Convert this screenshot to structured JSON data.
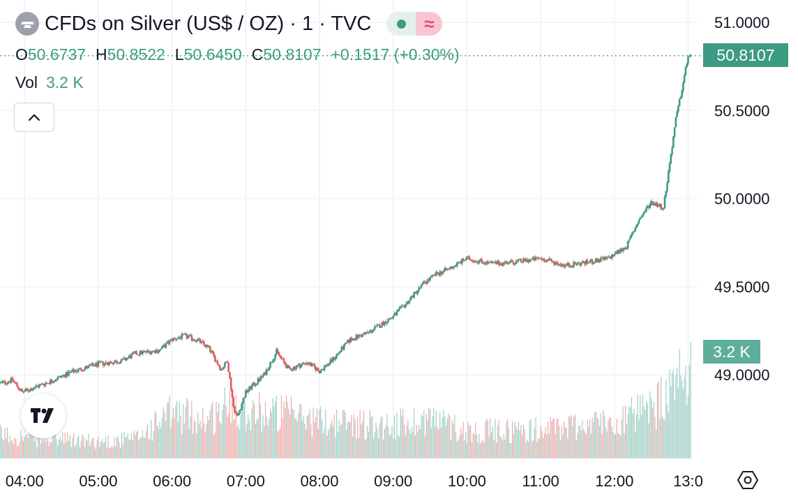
{
  "legend": {
    "title": "CFDs on Silver (US$ / OZ) · 1 · TVC",
    "market_status": "live",
    "delayed_glyph": "≈",
    "open_label": "O",
    "open_value": "50.6737",
    "high_label": "H",
    "high_value": "50.8522",
    "low_label": "L",
    "low_value": "50.6450",
    "close_label": "C",
    "close_value": "50.8107",
    "change": "+0.1517 (+0.30%)",
    "volume_label": "Vol",
    "volume_value": "3.2 K"
  },
  "badges": {
    "last_price": "50.8107",
    "last_volume": "3.2 K"
  },
  "icons": {
    "symbol_logo": "silver-bars-icon",
    "collapse": "chevron-up-icon",
    "watermark": "tradingview-logo-icon",
    "settings": "settings-hexagon-icon"
  },
  "colors": {
    "up": "#3d9b83",
    "down": "#e05b5b",
    "grid": "#f0f3fa",
    "text": "#131722",
    "volume_up": "#9ecfc4",
    "volume_down": "#f0a9a9"
  },
  "chart_data": {
    "type": "line",
    "title": "CFDs on Silver (US$ / OZ) · 1 · TVC",
    "price_axis": {
      "ticks": [
        49.0,
        49.5,
        50.0,
        50.5,
        51.0
      ],
      "labels": [
        "49.0000",
        "49.5000",
        "50.0000",
        "50.5000",
        "51.0000"
      ],
      "range": [
        48.5,
        51.2
      ],
      "grid": true
    },
    "time_axis": {
      "labels": [
        "04:00",
        "05:00",
        "06:00",
        "07:00",
        "08:00",
        "09:00",
        "10:00",
        "11:00",
        "12:00",
        "13:0"
      ],
      "range": [
        "03:40",
        "13:02"
      ],
      "grid": true
    },
    "series": [
      {
        "name": "",
        "price_path": [
          {
            "t": "03:40",
            "p": 48.95
          },
          {
            "t": "03:50",
            "p": 48.97
          },
          {
            "t": "03:58",
            "p": 48.9
          },
          {
            "t": "04:05",
            "p": 48.92
          },
          {
            "t": "04:20",
            "p": 48.96
          },
          {
            "t": "04:40",
            "p": 49.02
          },
          {
            "t": "05:00",
            "p": 49.06
          },
          {
            "t": "05:20",
            "p": 49.08
          },
          {
            "t": "05:30",
            "p": 49.12
          },
          {
            "t": "05:50",
            "p": 49.14
          },
          {
            "t": "06:00",
            "p": 49.2
          },
          {
            "t": "06:10",
            "p": 49.22
          },
          {
            "t": "06:20",
            "p": 49.2
          },
          {
            "t": "06:30",
            "p": 49.15
          },
          {
            "t": "06:40",
            "p": 49.03
          },
          {
            "t": "06:45",
            "p": 49.08
          },
          {
            "t": "06:50",
            "p": 48.82
          },
          {
            "t": "06:53",
            "p": 48.76
          },
          {
            "t": "07:00",
            "p": 48.9
          },
          {
            "t": "07:15",
            "p": 49.0
          },
          {
            "t": "07:25",
            "p": 49.13
          },
          {
            "t": "07:35",
            "p": 49.03
          },
          {
            "t": "07:50",
            "p": 49.07
          },
          {
            "t": "08:00",
            "p": 49.02
          },
          {
            "t": "08:10",
            "p": 49.08
          },
          {
            "t": "08:25",
            "p": 49.2
          },
          {
            "t": "08:40",
            "p": 49.24
          },
          {
            "t": "09:00",
            "p": 49.33
          },
          {
            "t": "09:10",
            "p": 49.4
          },
          {
            "t": "09:25",
            "p": 49.52
          },
          {
            "t": "09:35",
            "p": 49.57
          },
          {
            "t": "09:45",
            "p": 49.6
          },
          {
            "t": "10:00",
            "p": 49.66
          },
          {
            "t": "10:20",
            "p": 49.63
          },
          {
            "t": "10:40",
            "p": 49.64
          },
          {
            "t": "11:00",
            "p": 49.66
          },
          {
            "t": "11:20",
            "p": 49.62
          },
          {
            "t": "11:40",
            "p": 49.64
          },
          {
            "t": "11:55",
            "p": 49.66
          },
          {
            "t": "12:10",
            "p": 49.73
          },
          {
            "t": "12:20",
            "p": 49.88
          },
          {
            "t": "12:30",
            "p": 49.98
          },
          {
            "t": "12:40",
            "p": 49.95
          },
          {
            "t": "12:45",
            "p": 50.2
          },
          {
            "t": "12:50",
            "p": 50.45
          },
          {
            "t": "12:55",
            "p": 50.62
          },
          {
            "t": "13:00",
            "p": 50.81
          }
        ],
        "volume_range": [
          0,
          3200
        ],
        "volume_profile": [
          {
            "t": "03:40",
            "v": 800
          },
          {
            "t": "04:00",
            "v": 700
          },
          {
            "t": "05:00",
            "v": 550
          },
          {
            "t": "05:30",
            "v": 650
          },
          {
            "t": "06:00",
            "v": 1500
          },
          {
            "t": "06:30",
            "v": 1300
          },
          {
            "t": "06:50",
            "v": 1900
          },
          {
            "t": "07:00",
            "v": 1600
          },
          {
            "t": "07:30",
            "v": 1500
          },
          {
            "t": "08:00",
            "v": 1250
          },
          {
            "t": "09:00",
            "v": 1100
          },
          {
            "t": "09:30",
            "v": 1350
          },
          {
            "t": "10:00",
            "v": 900
          },
          {
            "t": "11:00",
            "v": 950
          },
          {
            "t": "12:00",
            "v": 1250
          },
          {
            "t": "12:30",
            "v": 1600
          },
          {
            "t": "12:50",
            "v": 2300
          },
          {
            "t": "13:00",
            "v": 3200
          }
        ]
      }
    ]
  }
}
